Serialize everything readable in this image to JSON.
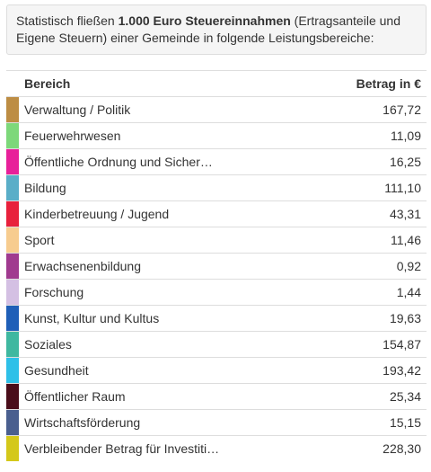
{
  "intro": {
    "before": "Statistisch fließen ",
    "bold": "1.000 Euro Steuereinnahmen",
    "after": " (Ertragsanteile und Eigene Steuern) einer Gemeinde in folgende Leistungsbereiche:"
  },
  "table": {
    "header": [
      "Bereich",
      "Betrag in €"
    ],
    "rows": [
      {
        "color": "#bd8d44",
        "label": "Verwaltung / Politik",
        "amount": "167,72"
      },
      {
        "color": "#7dd87a",
        "label": "Feuerwehrwesen",
        "amount": "11,09"
      },
      {
        "color": "#e8209a",
        "label": "Öffentliche Ordnung und Sicher…",
        "amount": "16,25"
      },
      {
        "color": "#5aaec8",
        "label": "Bildung",
        "amount": "111,10"
      },
      {
        "color": "#e8213c",
        "label": "Kinderbetreuung / Jugend",
        "amount": "43,31"
      },
      {
        "color": "#f7cc8f",
        "label": "Sport",
        "amount": "11,46"
      },
      {
        "color": "#a03a8f",
        "label": "Erwachsenenbildung",
        "amount": "0,92"
      },
      {
        "color": "#d4c0e3",
        "label": "Forschung",
        "amount": "1,44"
      },
      {
        "color": "#1f5fb8",
        "label": "Kunst, Kultur und Kultus",
        "amount": "19,63"
      },
      {
        "color": "#3fb8a0",
        "label": "Soziales",
        "amount": "154,87"
      },
      {
        "color": "#2ec0e8",
        "label": "Gesundheit",
        "amount": "193,42"
      },
      {
        "color": "#4a0d1a",
        "label": "Öffentlicher Raum",
        "amount": "25,34"
      },
      {
        "color": "#4a5f8f",
        "label": "Wirtschaftsförderung",
        "amount": "15,15"
      },
      {
        "color": "#d4c81a",
        "label": "Verbleibender Betrag für Investiti…",
        "amount": "228,30"
      }
    ]
  }
}
